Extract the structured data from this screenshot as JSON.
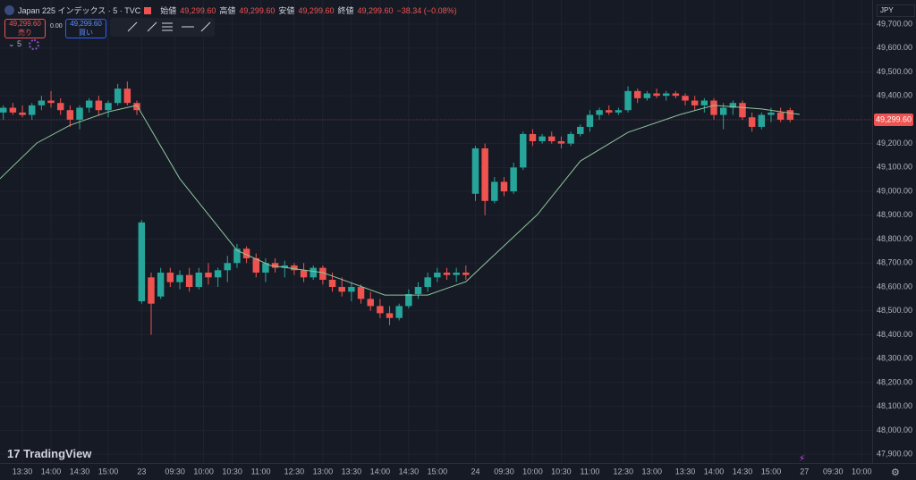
{
  "header": {
    "symbol_title": "Japan 225 インデックス · 5 · TVC",
    "open_label": "始値",
    "open": "49,299.60",
    "high_label": "高値",
    "high": "49,299.60",
    "low_label": "安値",
    "low": "49,299.60",
    "close_label": "終値",
    "close": "49,299.60",
    "change": "−38.34 (−0.08%)"
  },
  "trade": {
    "sell_price": "49,299.60",
    "sell_label": "売り",
    "spread": "0.00",
    "buy_price": "49,299.60",
    "buy_label": "買い"
  },
  "indicator_count": "5",
  "currency": "JPY",
  "logo": "TradingView",
  "chart_data": {
    "type": "candlestick",
    "up_color": "#26a69a",
    "down_color": "#ef5350",
    "grid": true,
    "xlim": [
      -4.7,
      178.2
    ],
    "ylim": [
      47863,
      49801
    ],
    "xticks": [
      {
        "value": 0,
        "label": "13:30"
      },
      {
        "value": 6,
        "label": "14:00"
      },
      {
        "value": 12,
        "label": "14:30"
      },
      {
        "value": 18,
        "label": "15:00"
      },
      {
        "value": 25,
        "label": "23"
      },
      {
        "value": 32,
        "label": "09:30"
      },
      {
        "value": 38,
        "label": "10:00"
      },
      {
        "value": 44,
        "label": "10:30"
      },
      {
        "value": 50,
        "label": "11:00"
      },
      {
        "value": 57,
        "label": "12:30"
      },
      {
        "value": 63,
        "label": "13:00"
      },
      {
        "value": 69,
        "label": "13:30"
      },
      {
        "value": 75,
        "label": "14:00"
      },
      {
        "value": 81,
        "label": "14:30"
      },
      {
        "value": 87,
        "label": "15:00"
      },
      {
        "value": 95,
        "label": "24"
      },
      {
        "value": 101,
        "label": "09:30"
      },
      {
        "value": 107,
        "label": "10:00"
      },
      {
        "value": 113,
        "label": "10:30"
      },
      {
        "value": 119,
        "label": "11:00"
      },
      {
        "value": 126,
        "label": "12:30"
      },
      {
        "value": 132,
        "label": "13:00"
      },
      {
        "value": 139,
        "label": "13:30"
      },
      {
        "value": 145,
        "label": "14:00"
      },
      {
        "value": 151,
        "label": "14:30"
      },
      {
        "value": 157,
        "label": "15:00"
      },
      {
        "value": 164,
        "label": "27"
      },
      {
        "value": 170,
        "label": "09:30"
      },
      {
        "value": 176,
        "label": "10:00"
      }
    ],
    "yticks": [
      {
        "value": 47900,
        "label": "47,900.00"
      },
      {
        "value": 48000,
        "label": "48,000.00"
      },
      {
        "value": 48100,
        "label": "48,100.00"
      },
      {
        "value": 48200,
        "label": "48,200.00"
      },
      {
        "value": 48300,
        "label": "48,300.00"
      },
      {
        "value": 48400,
        "label": "48,400.00"
      },
      {
        "value": 48500,
        "label": "48,500.00"
      },
      {
        "value": 48600,
        "label": "48,600.00"
      },
      {
        "value": 48700,
        "label": "48,700.00"
      },
      {
        "value": 48800,
        "label": "48,800.00"
      },
      {
        "value": 48900,
        "label": "48,900.00"
      },
      {
        "value": 49000,
        "label": "49,000.00"
      },
      {
        "value": 49100,
        "label": "49,100.00"
      },
      {
        "value": 49200,
        "label": "49,200.00"
      },
      {
        "value": 49300,
        "label": "49,300.00"
      },
      {
        "value": 49400,
        "label": "49,400.00"
      },
      {
        "value": 49500,
        "label": "49,500.00"
      },
      {
        "value": 49600,
        "label": "49,600.00"
      },
      {
        "value": 49700,
        "label": "49,700.00"
      }
    ],
    "candles": [
      [
        -4,
        49330,
        49360,
        49300,
        49350
      ],
      [
        -2,
        49350,
        49370,
        49320,
        49330
      ],
      [
        0,
        49330,
        49360,
        49310,
        49320
      ],
      [
        2,
        49320,
        49370,
        49300,
        49360
      ],
      [
        4,
        49360,
        49400,
        49340,
        49380
      ],
      [
        6,
        49380,
        49420,
        49350,
        49370
      ],
      [
        8,
        49370,
        49390,
        49320,
        49340
      ],
      [
        10,
        49340,
        49360,
        49270,
        49300
      ],
      [
        12,
        49300,
        49360,
        49260,
        49350
      ],
      [
        14,
        49350,
        49390,
        49330,
        49380
      ],
      [
        16,
        49380,
        49400,
        49320,
        49340
      ],
      [
        18,
        49340,
        49380,
        49310,
        49370
      ],
      [
        20,
        49370,
        49450,
        49360,
        49430
      ],
      [
        22,
        49430,
        49460,
        49360,
        49370
      ],
      [
        24,
        49370,
        49380,
        49320,
        49340
      ],
      [
        25,
        48540,
        48880,
        48530,
        48870
      ],
      [
        27,
        48640,
        48660,
        48400,
        48530
      ],
      [
        29,
        48560,
        48680,
        48550,
        48660
      ],
      [
        31,
        48660,
        48680,
        48600,
        48620
      ],
      [
        33,
        48620,
        48670,
        48590,
        48650
      ],
      [
        35,
        48650,
        48680,
        48580,
        48600
      ],
      [
        37,
        48600,
        48680,
        48590,
        48660
      ],
      [
        39,
        48660,
        48700,
        48610,
        48640
      ],
      [
        41,
        48640,
        48680,
        48600,
        48670
      ],
      [
        43,
        48670,
        48730,
        48620,
        48700
      ],
      [
        45,
        48700,
        48780,
        48680,
        48760
      ],
      [
        47,
        48760,
        48770,
        48700,
        48720
      ],
      [
        49,
        48720,
        48740,
        48640,
        48660
      ],
      [
        51,
        48660,
        48720,
        48620,
        48700
      ],
      [
        53,
        48700,
        48720,
        48660,
        48680
      ],
      [
        55,
        48680,
        48710,
        48640,
        48690
      ],
      [
        57,
        48690,
        48700,
        48650,
        48670
      ],
      [
        59,
        48670,
        48700,
        48620,
        48640
      ],
      [
        61,
        48640,
        48690,
        48630,
        48680
      ],
      [
        63,
        48680,
        48690,
        48610,
        48630
      ],
      [
        65,
        48630,
        48660,
        48580,
        48600
      ],
      [
        67,
        48600,
        48640,
        48560,
        48580
      ],
      [
        69,
        48580,
        48620,
        48540,
        48600
      ],
      [
        71,
        48600,
        48610,
        48530,
        48550
      ],
      [
        73,
        48550,
        48580,
        48500,
        48520
      ],
      [
        75,
        48520,
        48550,
        48470,
        48490
      ],
      [
        77,
        48490,
        48520,
        48440,
        48470
      ],
      [
        79,
        48470,
        48530,
        48460,
        48520
      ],
      [
        81,
        48520,
        48590,
        48510,
        48570
      ],
      [
        83,
        48570,
        48620,
        48550,
        48600
      ],
      [
        85,
        48600,
        48660,
        48580,
        48640
      ],
      [
        87,
        48640,
        48680,
        48620,
        48660
      ],
      [
        89,
        48660,
        48680,
        48630,
        48650
      ],
      [
        91,
        48650,
        48680,
        48620,
        48660
      ],
      [
        93,
        48660,
        48690,
        48630,
        48650
      ],
      [
        95,
        48990,
        49190,
        48960,
        49180
      ],
      [
        97,
        49180,
        49200,
        48900,
        48960
      ],
      [
        99,
        48960,
        49060,
        48950,
        49040
      ],
      [
        101,
        49040,
        49060,
        48980,
        49000
      ],
      [
        103,
        49000,
        49120,
        48990,
        49100
      ],
      [
        105,
        49100,
        49250,
        49090,
        49240
      ],
      [
        107,
        49240,
        49260,
        49190,
        49210
      ],
      [
        109,
        49210,
        49240,
        49200,
        49230
      ],
      [
        111,
        49230,
        49250,
        49200,
        49210
      ],
      [
        113,
        49210,
        49230,
        49180,
        49200
      ],
      [
        115,
        49200,
        49250,
        49190,
        49240
      ],
      [
        117,
        49240,
        49280,
        49230,
        49270
      ],
      [
        119,
        49270,
        49340,
        49250,
        49320
      ],
      [
        121,
        49320,
        49350,
        49300,
        49340
      ],
      [
        123,
        49340,
        49360,
        49320,
        49330
      ],
      [
        125,
        49330,
        49350,
        49320,
        49340
      ],
      [
        127,
        49340,
        49440,
        49330,
        49420
      ],
      [
        129,
        49420,
        49430,
        49370,
        49390
      ],
      [
        131,
        49390,
        49420,
        49380,
        49410
      ],
      [
        133,
        49410,
        49430,
        49390,
        49400
      ],
      [
        135,
        49400,
        49420,
        49380,
        49410
      ],
      [
        137,
        49410,
        49420,
        49390,
        49400
      ],
      [
        139,
        49400,
        49410,
        49360,
        49380
      ],
      [
        141,
        49380,
        49400,
        49340,
        49360
      ],
      [
        143,
        49360,
        49390,
        49330,
        49380
      ],
      [
        145,
        49380,
        49390,
        49300,
        49320
      ],
      [
        147,
        49320,
        49370,
        49260,
        49350
      ],
      [
        149,
        49350,
        49380,
        49320,
        49370
      ],
      [
        151,
        49370,
        49380,
        49300,
        49310
      ],
      [
        153,
        49310,
        49330,
        49250,
        49270
      ],
      [
        155,
        49270,
        49330,
        49260,
        49320
      ],
      [
        157,
        49320,
        49350,
        49290,
        49330
      ],
      [
        159,
        49330,
        49350,
        49290,
        49300
      ],
      [
        161,
        49340,
        49350,
        49290,
        49299.6
      ]
    ],
    "ma": {
      "color": "#8cc69a",
      "x": [
        -4.7,
        3,
        10,
        18,
        24,
        33,
        45,
        52,
        63,
        76,
        85,
        93,
        98,
        108,
        117,
        127,
        138,
        145,
        155,
        163
      ],
      "values": [
        49053,
        49202,
        49277,
        49333,
        49360,
        49053,
        48753,
        48690,
        48660,
        48566,
        48566,
        48622,
        48716,
        48903,
        49127,
        49247,
        49322,
        49360,
        49345,
        49322
      ]
    },
    "last_price": {
      "value": 49299.6,
      "label": "49,299.60"
    }
  }
}
